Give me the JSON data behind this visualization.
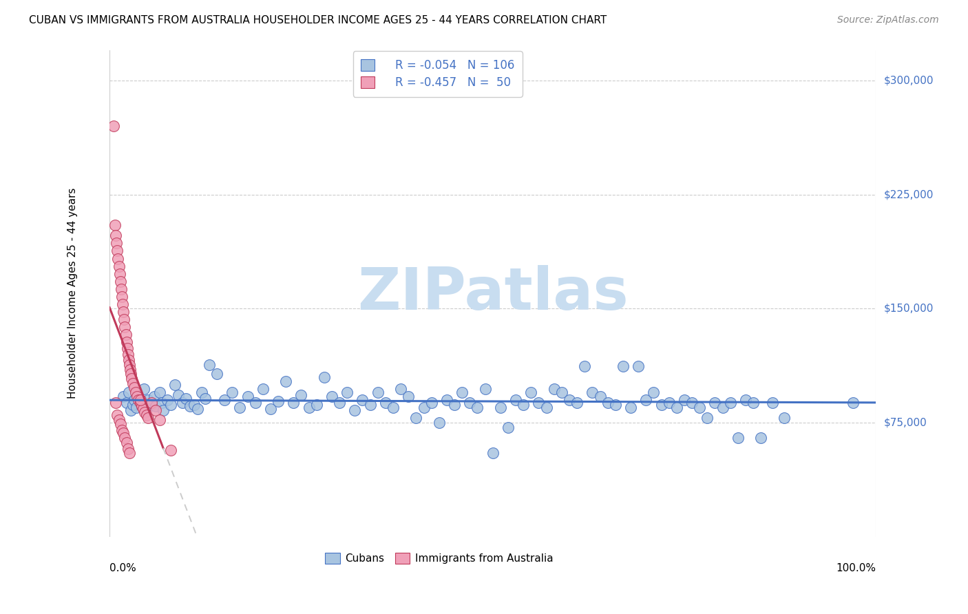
{
  "title": "CUBAN VS IMMIGRANTS FROM AUSTRALIA HOUSEHOLDER INCOME AGES 25 - 44 YEARS CORRELATION CHART",
  "source": "Source: ZipAtlas.com",
  "ylabel": "Householder Income Ages 25 - 44 years",
  "ytick_labels": [
    "$75,000",
    "$150,000",
    "$225,000",
    "$300,000"
  ],
  "ytick_values": [
    75000,
    150000,
    225000,
    300000
  ],
  "ymin": 0,
  "ymax": 320000,
  "xmin": 0.0,
  "xmax": 1.0,
  "legend_labels": [
    "Cubans",
    "Immigrants from Australia"
  ],
  "r_cuban": "-0.054",
  "n_cuban": "106",
  "r_aus": "-0.457",
  "n_aus": "50",
  "color_cuban_fill": "#a8c4e0",
  "color_cuban_edge": "#4472c4",
  "color_aus_fill": "#f0a0b8",
  "color_aus_edge": "#c0395a",
  "color_cuban_line": "#4472c4",
  "color_aus_line_solid": "#c0395a",
  "color_aus_line_dash": "#cccccc",
  "color_r_n": "#4472c4",
  "watermark_color": "#c8ddf0",
  "background_color": "#ffffff",
  "cubans_x": [
    0.018,
    0.022,
    0.025,
    0.028,
    0.03,
    0.032,
    0.035,
    0.038,
    0.04,
    0.042,
    0.045,
    0.048,
    0.05,
    0.055,
    0.058,
    0.06,
    0.065,
    0.068,
    0.07,
    0.075,
    0.08,
    0.085,
    0.09,
    0.095,
    0.1,
    0.105,
    0.11,
    0.115,
    0.12,
    0.125,
    0.13,
    0.14,
    0.15,
    0.16,
    0.17,
    0.18,
    0.19,
    0.2,
    0.21,
    0.22,
    0.23,
    0.24,
    0.25,
    0.26,
    0.27,
    0.28,
    0.29,
    0.3,
    0.31,
    0.32,
    0.33,
    0.34,
    0.35,
    0.36,
    0.37,
    0.38,
    0.39,
    0.4,
    0.41,
    0.42,
    0.43,
    0.44,
    0.45,
    0.46,
    0.47,
    0.48,
    0.49,
    0.5,
    0.51,
    0.52,
    0.53,
    0.54,
    0.55,
    0.56,
    0.57,
    0.58,
    0.59,
    0.6,
    0.61,
    0.62,
    0.63,
    0.64,
    0.65,
    0.66,
    0.67,
    0.68,
    0.69,
    0.7,
    0.71,
    0.72,
    0.73,
    0.74,
    0.75,
    0.76,
    0.77,
    0.78,
    0.79,
    0.8,
    0.81,
    0.82,
    0.83,
    0.84,
    0.85,
    0.865,
    0.88,
    0.97
  ],
  "cubans_y": [
    92000,
    88000,
    95000,
    83000,
    87000,
    90000,
    85000,
    91000,
    88000,
    86000,
    97000,
    84000,
    90000,
    87000,
    92000,
    86000,
    95000,
    88000,
    83000,
    90000,
    87000,
    100000,
    93000,
    88000,
    91000,
    86000,
    87000,
    84000,
    95000,
    91000,
    113000,
    107000,
    90000,
    95000,
    85000,
    92000,
    88000,
    97000,
    84000,
    89000,
    102000,
    88000,
    93000,
    85000,
    87000,
    105000,
    92000,
    88000,
    95000,
    83000,
    90000,
    87000,
    95000,
    88000,
    85000,
    97000,
    92000,
    78000,
    85000,
    88000,
    75000,
    90000,
    87000,
    95000,
    88000,
    85000,
    97000,
    55000,
    85000,
    72000,
    90000,
    87000,
    95000,
    88000,
    85000,
    97000,
    95000,
    90000,
    88000,
    112000,
    95000,
    92000,
    88000,
    87000,
    112000,
    85000,
    112000,
    90000,
    95000,
    87000,
    88000,
    85000,
    90000,
    88000,
    85000,
    78000,
    88000,
    85000,
    88000,
    65000,
    90000,
    88000,
    65000,
    88000,
    78000,
    88000
  ],
  "aus_x": [
    0.005,
    0.007,
    0.008,
    0.009,
    0.01,
    0.011,
    0.012,
    0.013,
    0.014,
    0.015,
    0.016,
    0.017,
    0.018,
    0.019,
    0.02,
    0.021,
    0.022,
    0.023,
    0.024,
    0.025,
    0.026,
    0.027,
    0.028,
    0.029,
    0.03,
    0.032,
    0.034,
    0.036,
    0.038,
    0.04,
    0.042,
    0.044,
    0.046,
    0.048,
    0.05,
    0.055,
    0.06,
    0.065,
    0.008,
    0.01,
    0.012,
    0.014,
    0.016,
    0.018,
    0.02,
    0.022,
    0.024,
    0.026,
    0.04,
    0.08
  ],
  "aus_y": [
    270000,
    205000,
    198000,
    193000,
    188000,
    183000,
    178000,
    173000,
    168000,
    163000,
    158000,
    153000,
    148000,
    143000,
    138000,
    133000,
    128000,
    124000,
    120000,
    116000,
    113000,
    110000,
    107000,
    104000,
    101000,
    98000,
    95000,
    92000,
    90000,
    88000,
    86000,
    84000,
    82000,
    80000,
    78000,
    88000,
    83000,
    77000,
    88000,
    80000,
    77000,
    74000,
    70000,
    68000,
    65000,
    62000,
    58000,
    55000,
    90000,
    57000
  ]
}
